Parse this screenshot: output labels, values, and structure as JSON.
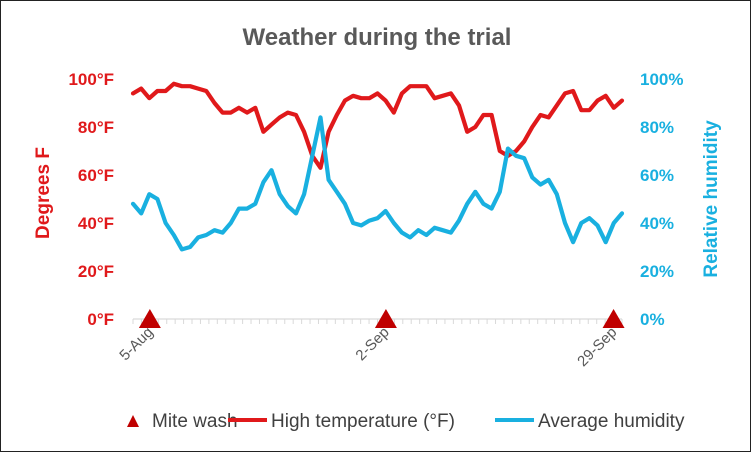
{
  "chart_data": {
    "type": "line",
    "title": "Weather during the trial",
    "ylabel_left": "Degrees F",
    "ylabel_right": "Relative humidity",
    "y_left_ticks": [
      "0°F",
      "20°F",
      "40°F",
      "60°F",
      "80°F",
      "100°F"
    ],
    "y_right_ticks": [
      "0%",
      "20%",
      "40%",
      "60%",
      "80%",
      "100%"
    ],
    "ylim_left": [
      0,
      100
    ],
    "ylim_right": [
      0,
      100
    ],
    "x_range_days": [
      0,
      58
    ],
    "x_ticks": [
      {
        "label": "5-Aug",
        "day": 2
      },
      {
        "label": "2-Sep",
        "day": 30
      },
      {
        "label": "29-Sep",
        "day": 57
      }
    ],
    "series": [
      {
        "name": "High temperature (°F)",
        "axis": "left",
        "color": "#e0191b",
        "values": [
          94,
          96,
          92,
          95,
          95,
          98,
          97,
          97,
          96,
          95,
          90,
          86,
          86,
          88,
          86,
          88,
          78,
          81,
          84,
          86,
          85,
          78,
          68,
          63,
          78,
          85,
          91,
          93,
          92,
          92,
          94,
          91,
          86,
          94,
          97,
          97,
          97,
          92,
          93,
          94,
          89,
          78,
          80,
          85,
          85,
          70,
          68,
          70,
          74,
          80,
          85,
          84,
          89,
          94,
          95,
          87,
          87,
          91,
          93,
          88,
          91
        ]
      },
      {
        "name": "Average humidity",
        "axis": "right",
        "color": "#19b0e0",
        "values": [
          48,
          44,
          52,
          50,
          40,
          35,
          29,
          30,
          34,
          35,
          37,
          36,
          40,
          46,
          46,
          48,
          57,
          62,
          52,
          47,
          44,
          52,
          68,
          84,
          58,
          53,
          48,
          40,
          39,
          41,
          42,
          45,
          40,
          36,
          34,
          37,
          35,
          38,
          37,
          36,
          41,
          48,
          53,
          48,
          46,
          53,
          71,
          68,
          67,
          59,
          56,
          58,
          52,
          40,
          32,
          40,
          42,
          39,
          32,
          40,
          44
        ]
      }
    ],
    "markers": {
      "name": "Mite wash",
      "color": "#c00000",
      "days": [
        2,
        30,
        57
      ],
      "y_value": 0
    },
    "legend": [
      "Mite wash",
      "High temperature (°F)",
      "Average humidity"
    ],
    "legend_position": "bottom"
  }
}
